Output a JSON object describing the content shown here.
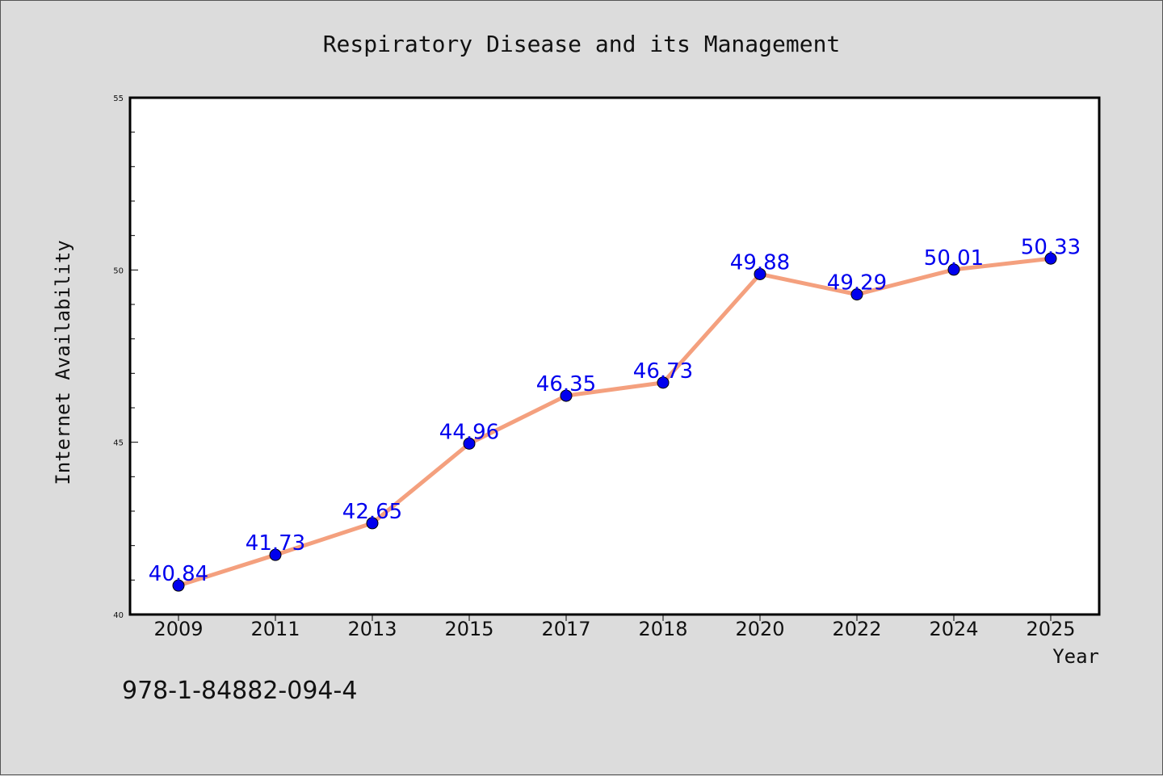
{
  "chart_data": {
    "type": "line",
    "title": "Respiratory Disease and its Management",
    "xlabel": "Year",
    "ylabel": "Internet Availability",
    "categories": [
      "2009",
      "2011",
      "2013",
      "2015",
      "2017",
      "2018",
      "2020",
      "2022",
      "2024",
      "2025"
    ],
    "values": [
      40.84,
      41.73,
      42.65,
      44.96,
      46.35,
      46.73,
      49.88,
      49.29,
      50.01,
      50.33
    ],
    "data_labels": [
      "40.84",
      "41.73",
      "42.65",
      "44.96",
      "46.35",
      "46.73",
      "49.88",
      "49.29",
      "50.01",
      "50.33"
    ],
    "ylim": [
      40,
      55
    ],
    "yticks": [
      "40",
      "45",
      "50",
      "55"
    ],
    "grid": false,
    "line_color": "#f4a07e",
    "marker_color": "#0000ee",
    "label_color": "#0000ee"
  },
  "footer_text": "978-1-84882-094-4"
}
